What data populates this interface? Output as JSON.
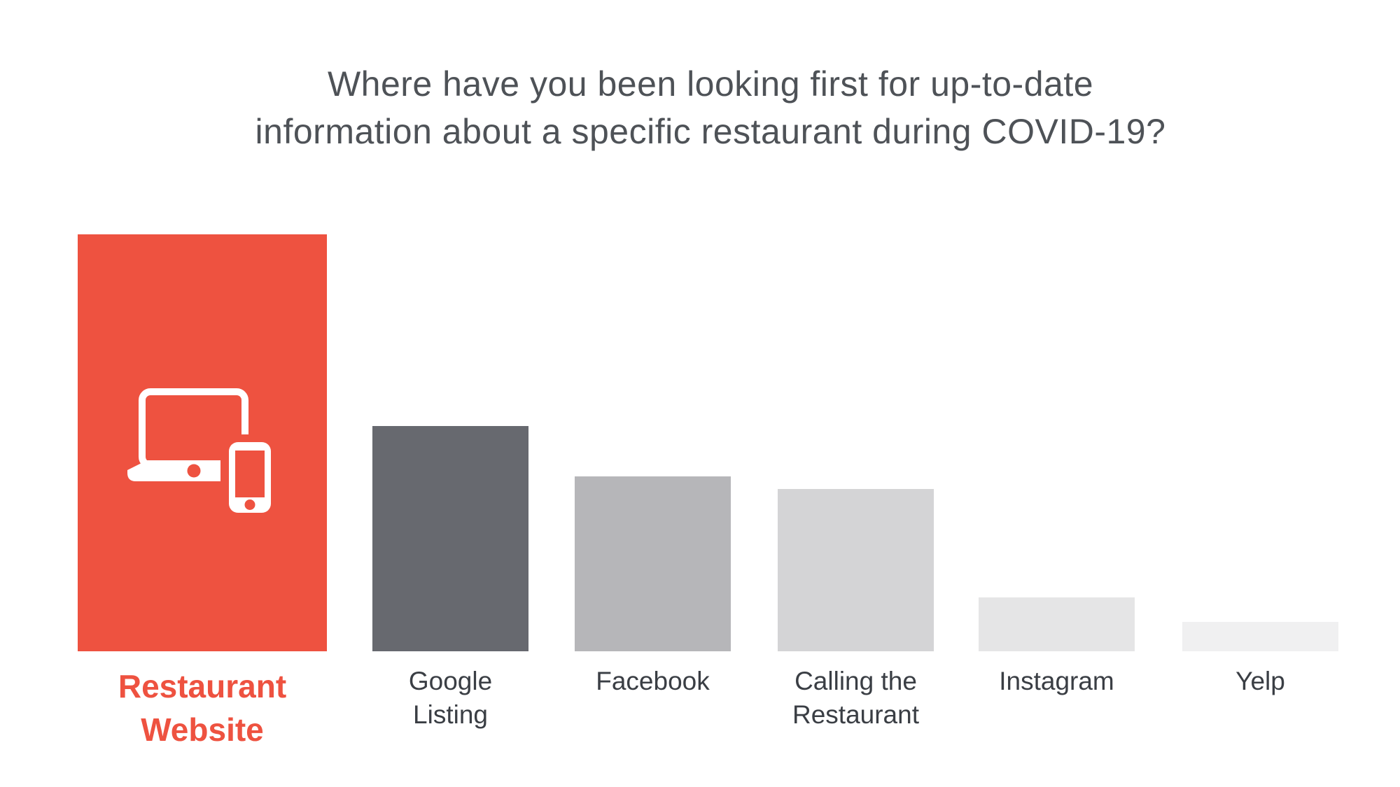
{
  "page": {
    "background": "#FFFFFF"
  },
  "title": {
    "lines": [
      "Where have you been looking first for up-to-date",
      "information about a specific restaurant during COVID-19?"
    ],
    "full_text": "Where have you been looking first for up-to-date information about a specific restaurant during COVID-19?",
    "color": "#4E5257"
  },
  "colors": {
    "accent_red": "#EE5240",
    "label_text": "#3A3E44",
    "icon_white": "#FFFFFF",
    "background": "#FFFFFF"
  },
  "chart_data": {
    "type": "bar",
    "title": "Where have you been looking first for up-to-date information about a specific restaurant during COVID-19?",
    "categories": [
      "Restaurant Website",
      "Google Listing",
      "Facebook",
      "Calling the Restaurant",
      "Instagram",
      "Yelp"
    ],
    "values": [
      100,
      54,
      42,
      39,
      13,
      7
    ],
    "values_note": "no numeric axis or data labels are shown in the image; values are bar heights estimated as a percentage of the tallest bar",
    "xlabel": "",
    "ylabel": "",
    "grid": false,
    "legend": false,
    "axis_lines": false,
    "bars": [
      {
        "label_lines": [
          "Restaurant",
          "Website"
        ],
        "value_pct": 100,
        "color": "#EE5240",
        "highlighted": true,
        "icon": "laptop-phone-icon"
      },
      {
        "label_lines": [
          "Google",
          "Listing"
        ],
        "value_pct": 54,
        "color": "#67696F"
      },
      {
        "label_lines": [
          "Facebook"
        ],
        "value_pct": 42,
        "color": "#B6B6B9"
      },
      {
        "label_lines": [
          "Calling the",
          "Restaurant"
        ],
        "value_pct": 39,
        "color": "#D4D4D6"
      },
      {
        "label_lines": [
          "Instagram"
        ],
        "value_pct": 13,
        "color": "#E5E5E6"
      },
      {
        "label_lines": [
          "Yelp"
        ],
        "value_pct": 7,
        "color": "#F0F0F1"
      }
    ]
  }
}
